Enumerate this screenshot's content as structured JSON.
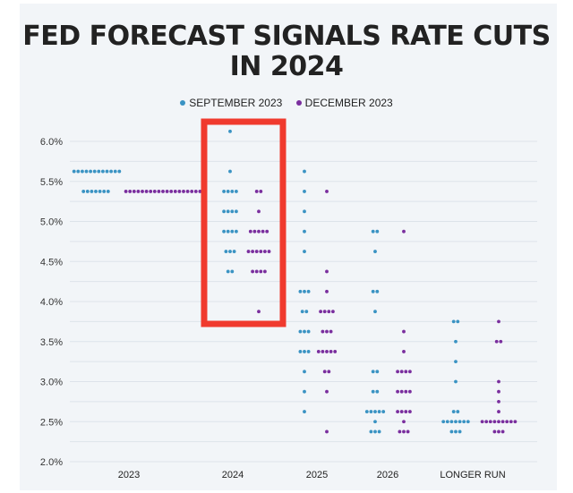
{
  "chart_data": {
    "type": "scatter",
    "subtype": "dot-plot",
    "title": "FED FORECAST SIGNALS RATE CUTS IN 2024",
    "xlabel": "",
    "ylabel": "",
    "ylim": [
      2.0,
      6.0
    ],
    "y_ticks": [
      "6.0%",
      "5.5%",
      "5.0%",
      "4.5%",
      "4.0%",
      "3.5%",
      "3.0%",
      "2.5%",
      "2.0%"
    ],
    "y_tick_values": [
      6.0,
      5.5,
      5.0,
      4.5,
      4.0,
      3.5,
      3.0,
      2.5,
      2.0
    ],
    "grid": true,
    "grid_step": 0.25,
    "legend_position": "top-center",
    "categories": [
      "2023",
      "2024",
      "2025",
      "2026",
      "LONGER RUN"
    ],
    "series": [
      {
        "name": "SEPTEMBER 2023",
        "color": "#3a93c3",
        "points": {
          "2023": [
            [
              5.625,
              12
            ],
            [
              5.375,
              7
            ]
          ],
          "2024": [
            [
              6.125,
              1
            ],
            [
              5.625,
              1
            ],
            [
              5.375,
              4
            ],
            [
              5.125,
              4
            ],
            [
              4.875,
              4
            ],
            [
              4.625,
              3
            ],
            [
              4.375,
              2
            ]
          ],
          "2025": [
            [
              5.625,
              1
            ],
            [
              5.375,
              1
            ],
            [
              5.125,
              1
            ],
            [
              4.875,
              1
            ],
            [
              4.625,
              1
            ],
            [
              4.125,
              3
            ],
            [
              3.875,
              2
            ],
            [
              3.625,
              3
            ],
            [
              3.375,
              3
            ],
            [
              3.125,
              1
            ],
            [
              2.875,
              1
            ],
            [
              2.625,
              1
            ]
          ],
          "2026": [
            [
              4.875,
              2
            ],
            [
              4.625,
              1
            ],
            [
              4.125,
              2
            ],
            [
              3.875,
              1
            ],
            [
              3.125,
              2
            ],
            [
              2.875,
              2
            ],
            [
              2.625,
              5
            ],
            [
              2.5,
              1
            ],
            [
              2.375,
              3
            ]
          ],
          "LONGER RUN": [
            [
              3.75,
              2
            ],
            [
              3.5,
              1
            ],
            [
              3.25,
              1
            ],
            [
              3.0,
              1
            ],
            [
              2.625,
              2
            ],
            [
              2.5,
              7
            ],
            [
              2.375,
              3
            ]
          ]
        }
      },
      {
        "name": "DECEMBER 2023",
        "color": "#7a2e9e",
        "points": {
          "2023": [
            [
              5.375,
              19
            ]
          ],
          "2024": [
            [
              5.375,
              2
            ],
            [
              5.125,
              1
            ],
            [
              4.875,
              5
            ],
            [
              4.625,
              6
            ],
            [
              4.375,
              4
            ],
            [
              3.875,
              1
            ]
          ],
          "2025": [
            [
              5.375,
              1
            ],
            [
              4.375,
              1
            ],
            [
              4.125,
              1
            ],
            [
              3.875,
              4
            ],
            [
              3.625,
              3
            ],
            [
              3.375,
              5
            ],
            [
              3.125,
              2
            ],
            [
              2.875,
              1
            ],
            [
              2.375,
              1
            ]
          ],
          "2026": [
            [
              4.875,
              1
            ],
            [
              3.625,
              1
            ],
            [
              3.375,
              1
            ],
            [
              3.125,
              4
            ],
            [
              2.875,
              4
            ],
            [
              2.625,
              4
            ],
            [
              2.5,
              1
            ],
            [
              2.375,
              3
            ]
          ],
          "LONGER RUN": [
            [
              3.75,
              1
            ],
            [
              3.5,
              2
            ],
            [
              3.0,
              1
            ],
            [
              2.875,
              1
            ],
            [
              2.75,
              1
            ],
            [
              2.625,
              1
            ],
            [
              2.5,
              9
            ],
            [
              2.375,
              3
            ]
          ]
        }
      }
    ],
    "annotations": [
      {
        "type": "highlight-box",
        "target": "2024",
        "color": "#f03a2e"
      }
    ]
  },
  "title": "FED FORECAST SIGNALS RATE CUTS IN 2024",
  "title_line1": "FED FORECAST SIGNALS RATE CUTS",
  "title_line2": "IN 2024",
  "legend": [
    {
      "label": "SEPTEMBER 2023",
      "color": "#3a93c3"
    },
    {
      "label": "DECEMBER 2023",
      "color": "#7a2e9e"
    }
  ]
}
